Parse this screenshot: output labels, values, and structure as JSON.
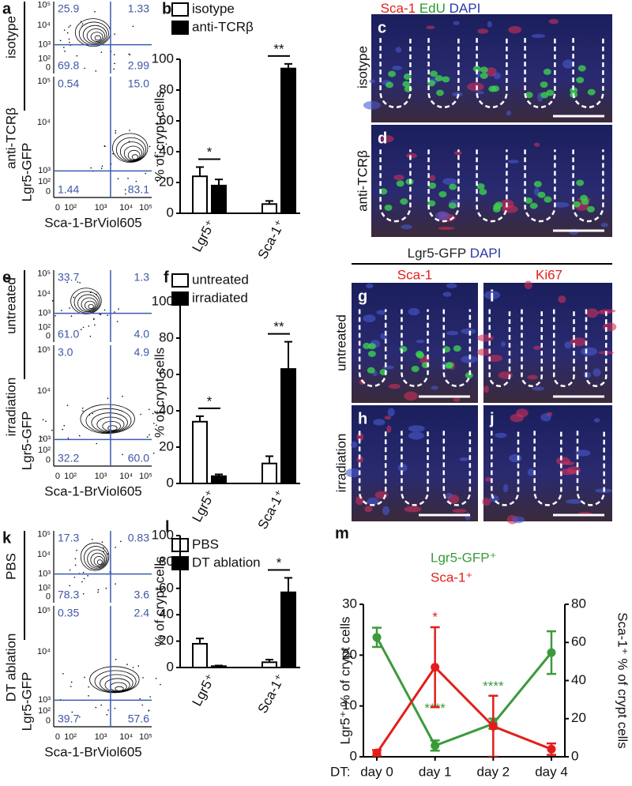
{
  "flow_panels": [
    {
      "label": "a",
      "conditions": [
        "isotype",
        "anti-TCRβ"
      ],
      "y_label": "Lgr5-GFP",
      "x_label": "Sca-1-BrViol605",
      "y_ticks": [
        "10⁵",
        "10⁴",
        "10³",
        "10²",
        "0"
      ],
      "x_ticks": [
        "0",
        "10²",
        "10³",
        "10⁴",
        "10⁵"
      ],
      "quadrants": [
        [
          "25.9",
          "1.33",
          "69.8",
          "2.99"
        ],
        [
          "0.54",
          "15.0",
          "1.44",
          "83.1"
        ]
      ]
    },
    {
      "label": "e",
      "conditions": [
        "untreated",
        "irradiation"
      ],
      "y_label": "Lgr5-GFP",
      "x_label": "Sca-1-BrViol605",
      "y_ticks": [
        "10⁵",
        "10⁴",
        "10³",
        "10²",
        "0"
      ],
      "x_ticks": [
        "0",
        "10²",
        "10³",
        "10⁴",
        "10⁵"
      ],
      "quadrants": [
        [
          "33.7",
          "1.3",
          "61.0",
          "4.0"
        ],
        [
          "3.0",
          "4.9",
          "32.2",
          "60.0"
        ]
      ]
    },
    {
      "label": "k",
      "conditions": [
        "PBS",
        "DT ablation"
      ],
      "y_label": "Lgr5-GFP",
      "x_label": "Sca-1-BrViol605",
      "y_ticks": [
        "10⁵",
        "10⁴",
        "10³",
        "10²",
        "0"
      ],
      "x_ticks": [
        "0",
        "10²",
        "10³",
        "10⁴",
        "10⁵"
      ],
      "quadrants": [
        [
          "17.3",
          "0.83",
          "78.3",
          "3.6"
        ],
        [
          "0.35",
          "2.4",
          "39.7",
          "57.6"
        ]
      ]
    }
  ],
  "micrographs": {
    "top": {
      "stains": [
        "Sca-1",
        "EdU",
        "DAPI"
      ],
      "rows": [
        "isotype",
        "anti-TCRβ"
      ],
      "panels": [
        "c",
        "d"
      ]
    },
    "bottom": {
      "stains": [
        "Lgr5-GFP",
        "DAPI"
      ],
      "columns": [
        "Sca-1",
        "Ki67"
      ],
      "rows": [
        "untreated",
        "irradiation"
      ],
      "panels": [
        [
          "g",
          "i"
        ],
        [
          "h",
          "j"
        ]
      ]
    }
  },
  "chart_data": [
    {
      "type": "bar",
      "label": "b",
      "ylabel": "% of crypt cells",
      "categories": [
        "Lgr5⁺",
        "Sca-1⁺"
      ],
      "series": [
        {
          "name": "isotype",
          "color": "#ffffff",
          "values": [
            24,
            6
          ],
          "errors": [
            6,
            2
          ]
        },
        {
          "name": "anti-TCRβ",
          "color": "#000000",
          "values": [
            18,
            94
          ],
          "errors": [
            4,
            3
          ]
        }
      ],
      "significance": [
        "*",
        "**"
      ],
      "ylim": [
        0,
        100
      ],
      "yticks": [
        0,
        20,
        40,
        60,
        80,
        100
      ]
    },
    {
      "type": "bar",
      "label": "f",
      "ylabel": "% of crypt cells",
      "categories": [
        "Lgr5⁺",
        "Sca-1⁺"
      ],
      "series": [
        {
          "name": "untreated",
          "color": "#ffffff",
          "values": [
            34,
            11
          ],
          "errors": [
            3,
            4
          ]
        },
        {
          "name": "irradiated",
          "color": "#000000",
          "values": [
            4,
            63
          ],
          "errors": [
            1,
            15
          ]
        }
      ],
      "significance": [
        "*",
        "**"
      ],
      "ylim": [
        0,
        100
      ],
      "yticks": [
        0,
        20,
        40,
        60,
        80,
        100
      ]
    },
    {
      "type": "bar",
      "label": "l",
      "ylabel": "% of crypt cells",
      "categories": [
        "Lgr5⁺",
        "Sca-1⁺"
      ],
      "series": [
        {
          "name": "PBS",
          "color": "#ffffff",
          "values": [
            18,
            4
          ],
          "errors": [
            4,
            2
          ]
        },
        {
          "name": "DT ablation",
          "color": "#000000",
          "values": [
            1,
            57
          ],
          "errors": [
            0.5,
            11
          ]
        }
      ],
      "significance": [
        null,
        "*"
      ],
      "ylim": [
        0,
        100
      ],
      "yticks": [
        0,
        20,
        40,
        60,
        80,
        100
      ]
    },
    {
      "type": "line",
      "label": "m",
      "x_prefix": "DT:",
      "categories": [
        "day 0",
        "day 1",
        "day 2",
        "day 4"
      ],
      "ylabel": "Lgr5⁺ % of crypt cells",
      "y2label": "Sca-1⁺ % of crypt cells",
      "series": [
        {
          "name": "Lgr5-GFP⁺",
          "color": "#3b9a3b",
          "values": [
            23.5,
            2.2,
            6.5,
            20.5
          ],
          "errors": [
            1.9,
            1.0,
            1.0,
            4.2
          ],
          "significance": [
            null,
            "****",
            "****",
            null
          ]
        },
        {
          "name": "Sca-1⁺",
          "color": "#e31e1a",
          "axis": "y2",
          "values": [
            2,
            47,
            16,
            4
          ],
          "errors": [
            1.5,
            21,
            16,
            3
          ],
          "significance": [
            null,
            "*",
            null,
            null
          ]
        }
      ],
      "ylim": [
        0,
        30
      ],
      "yticks": [
        0,
        10,
        20,
        30
      ],
      "y2lim": [
        0,
        80
      ],
      "y2ticks": [
        0,
        20,
        40,
        60,
        80
      ]
    }
  ]
}
